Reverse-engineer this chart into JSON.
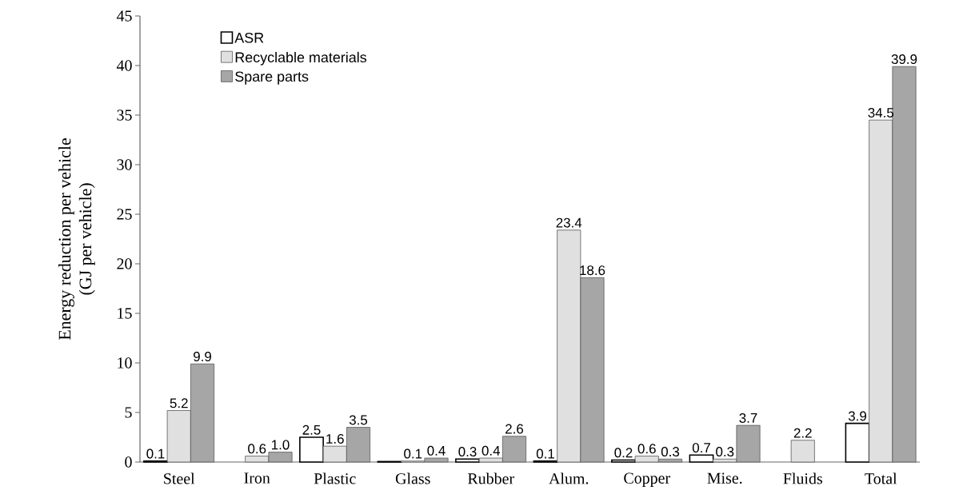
{
  "chart_data": {
    "type": "bar",
    "ylabel": "Energy reduction per vehicle\n(GJ per vehicle)",
    "categories": [
      "Steel",
      "Iron",
      "Plastic",
      "Glass",
      "Rubber",
      "Alum.",
      "Copper",
      "Mise.",
      "Fluids",
      "Total"
    ],
    "series": [
      {
        "name": "ASR",
        "color": "#ffffff",
        "values": [
          0.1,
          null,
          2.5,
          0.05,
          0.3,
          0.1,
          0.2,
          0.7,
          null,
          3.9
        ],
        "value_labels": [
          "0.1",
          null,
          "2.5",
          null,
          "0.3",
          "0.1",
          "0.2",
          "0.7",
          null,
          "3.9"
        ]
      },
      {
        "name": "Recyclable materials",
        "color": "#e0e0e0",
        "values": [
          5.2,
          0.6,
          1.6,
          0.1,
          0.4,
          23.4,
          0.6,
          0.3,
          2.2,
          34.5
        ],
        "value_labels": [
          "5.2",
          "0.6",
          "1.6",
          "0.1",
          "0.4",
          "23.4",
          "0.6",
          "0.3",
          "2.2",
          "34.5"
        ]
      },
      {
        "name": "Spare parts",
        "color": "#a6a6a6",
        "values": [
          9.9,
          1.0,
          3.5,
          0.4,
          2.6,
          18.6,
          0.3,
          3.7,
          null,
          39.9
        ],
        "value_labels": [
          "9.9",
          "1.0",
          "3.5",
          "0.4",
          "2.6",
          "18.6",
          "0.3",
          "3.7",
          null,
          "39.9"
        ]
      }
    ],
    "ylim": [
      0,
      45
    ],
    "yticks": [
      0,
      5,
      10,
      15,
      20,
      25,
      30,
      35,
      40,
      45
    ],
    "legend": "top left",
    "grid": false
  }
}
